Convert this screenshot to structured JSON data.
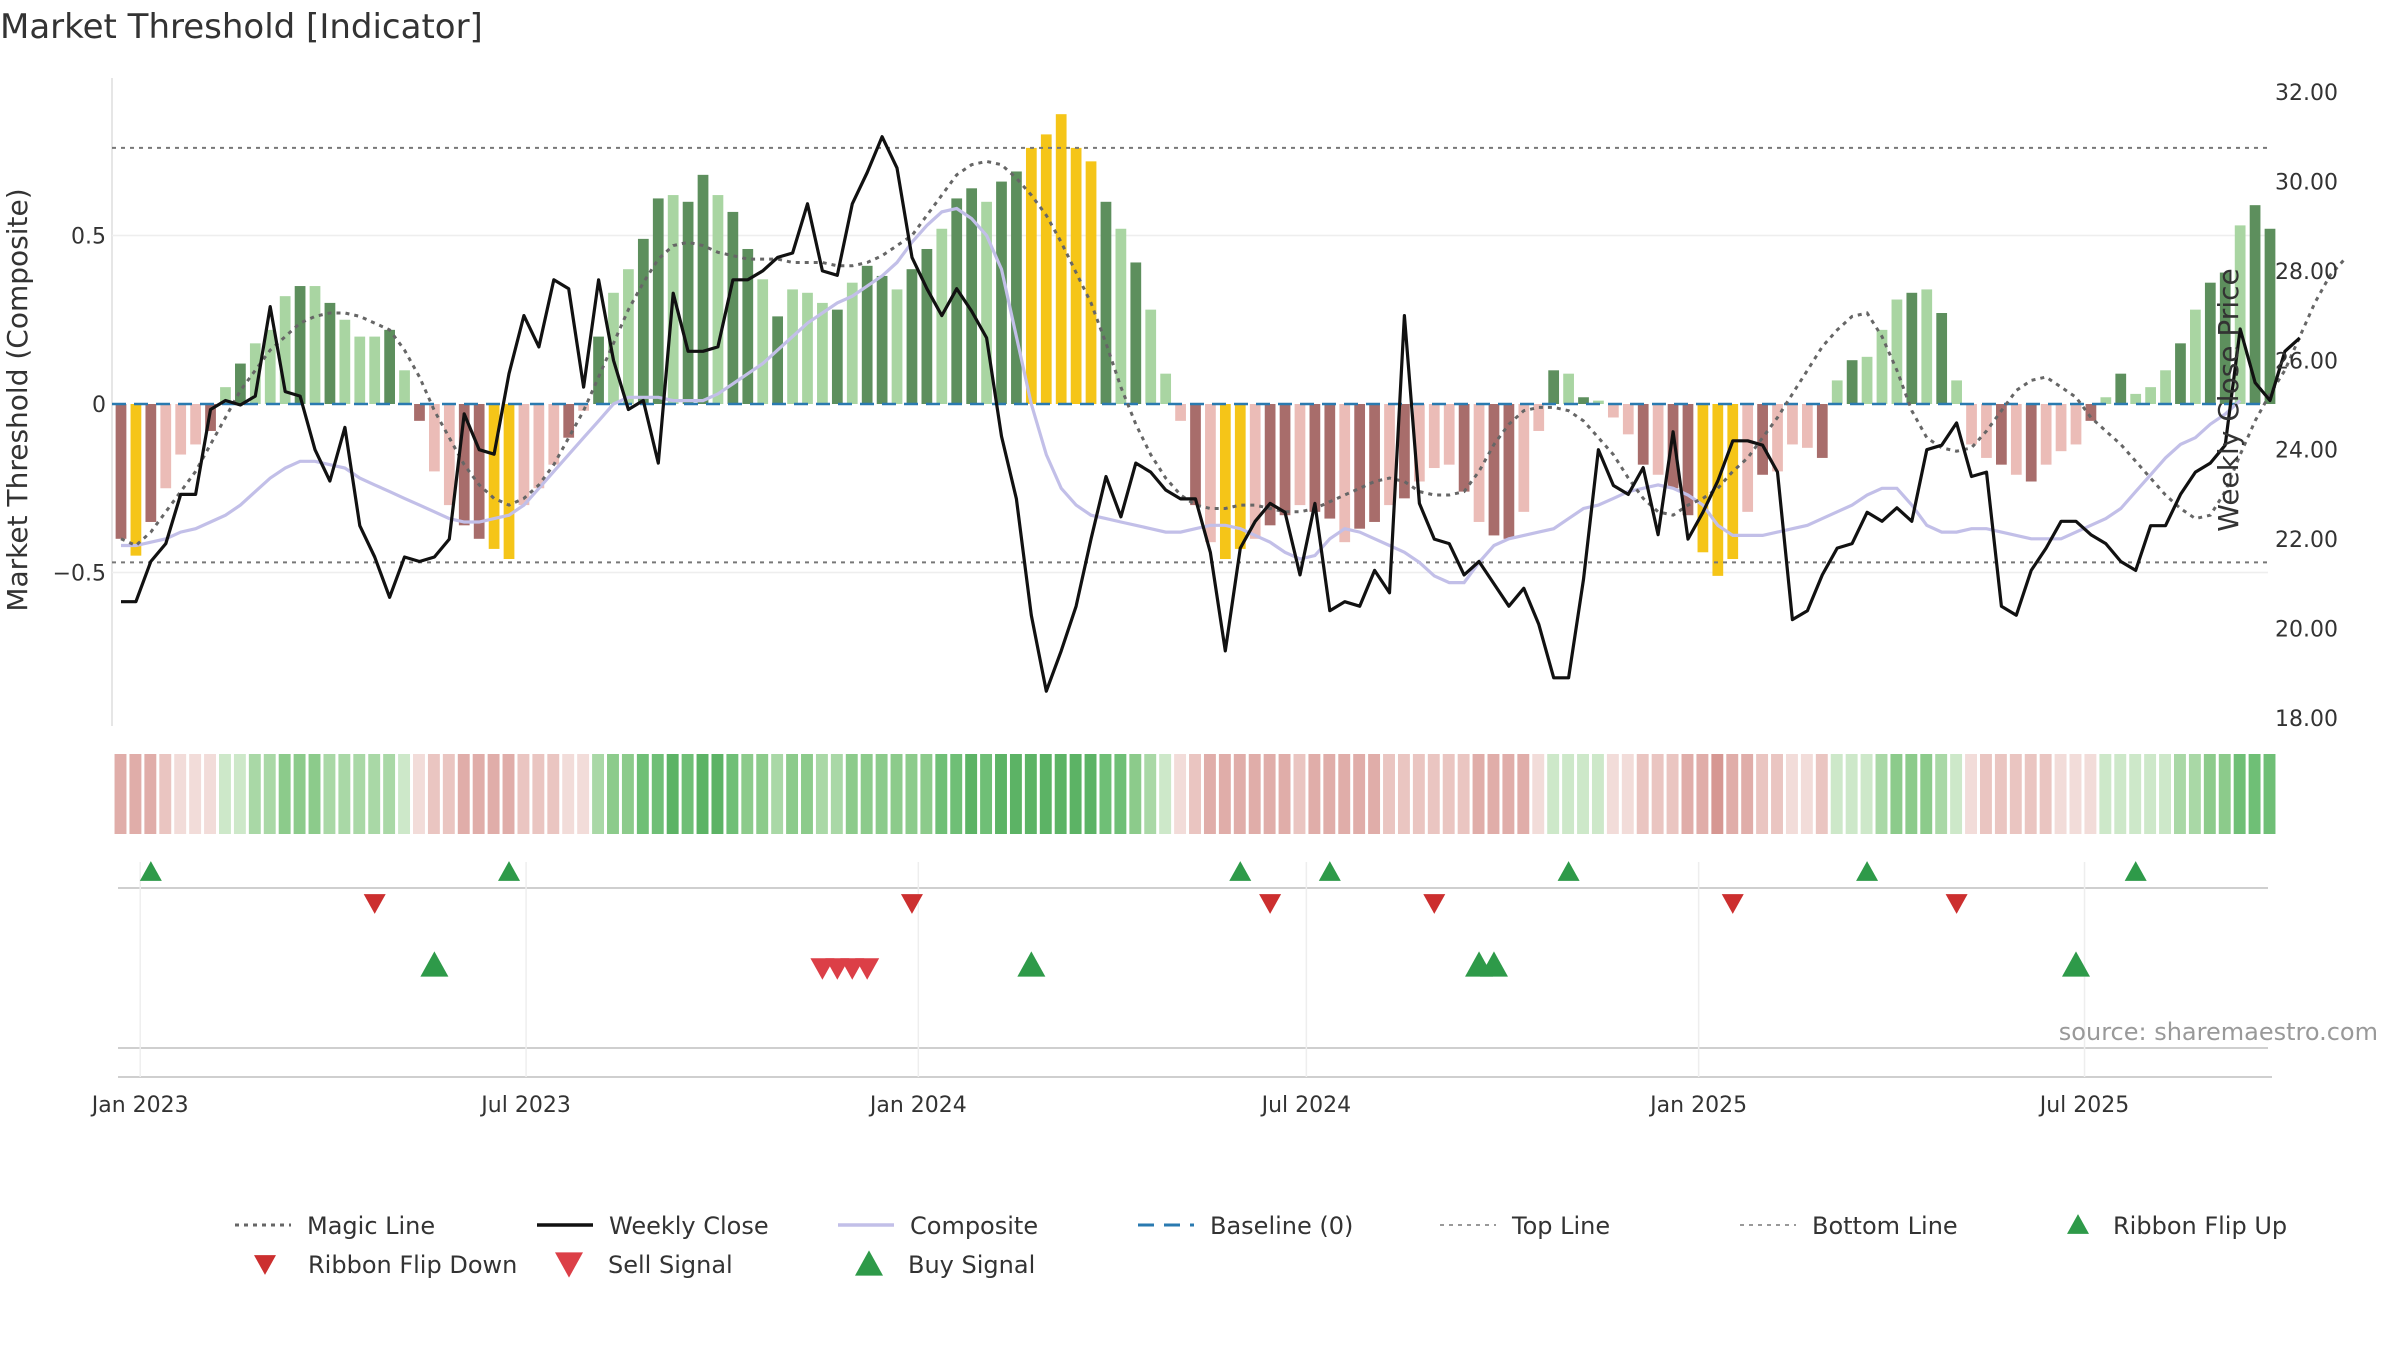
{
  "title": "Market Threshold [Indicator]",
  "source": "source: sharemaestro.com",
  "colors": {
    "bar_pos_strong": "#5d8f5d",
    "bar_pos_light": "#a9d5a2",
    "bar_neg_strong": "#a86d6b",
    "bar_neg_light": "#ebbcb7",
    "bar_extreme": "#f5c518",
    "weekly_close": "#111111",
    "composite": "#c2bfe8",
    "magic_line": "#666666",
    "baseline": "#2a7ab0",
    "ref_lines": "#777777",
    "ribbon_flip_up": "#2e9a49",
    "ribbon_flip_down": "#cc2f2f",
    "buy_signal": "#2e9a49",
    "sell_signal": "#dc3f47"
  },
  "chart_data": {
    "type": "bar",
    "title": "Market Threshold [Indicator]",
    "x_tick_labels": [
      "Jan 2023",
      "Jul 2023",
      "Jan 2024",
      "Jul 2024",
      "Jan 2025",
      "Jul 2025"
    ],
    "left_axis": {
      "label": "Market Threshold (Composite)",
      "ticks": [
        "0.5",
        "0",
        "−0.5"
      ],
      "tick_values": [
        0.5,
        0,
        -0.5
      ],
      "ylim": [
        -0.95,
        0.95
      ]
    },
    "right_axis": {
      "label": "Weekly Close Price",
      "ticks": [
        "32.00",
        "30.00",
        "28.00",
        "26.00",
        "24.00",
        "22.00",
        "20.00",
        "18.00"
      ],
      "tick_values": [
        32,
        30,
        28,
        26,
        24,
        22,
        20,
        18
      ],
      "ylim": [
        18,
        32
      ]
    },
    "top_line": 0.76,
    "bottom_line": -0.47,
    "baseline": 0,
    "weeks": 145,
    "start_date": "2022-12-23",
    "composite_histogram": [
      -0.4,
      -0.45,
      -0.35,
      -0.25,
      -0.15,
      -0.12,
      -0.08,
      0.05,
      0.12,
      0.18,
      0.22,
      0.32,
      0.35,
      0.35,
      0.3,
      0.25,
      0.2,
      0.2,
      0.22,
      0.1,
      -0.05,
      -0.2,
      -0.3,
      -0.36,
      -0.4,
      -0.43,
      -0.46,
      -0.3,
      -0.25,
      -0.18,
      -0.1,
      -0.02,
      0.2,
      0.33,
      0.4,
      0.49,
      0.61,
      0.62,
      0.6,
      0.68,
      0.62,
      0.57,
      0.46,
      0.37,
      0.26,
      0.34,
      0.33,
      0.3,
      0.28,
      0.36,
      0.41,
      0.38,
      0.34,
      0.4,
      0.46,
      0.52,
      0.61,
      0.64,
      0.6,
      0.66,
      0.69,
      0.76,
      0.8,
      0.86,
      0.76,
      0.72,
      0.6,
      0.52,
      0.42,
      0.28,
      0.09,
      -0.05,
      -0.3,
      -0.41,
      -0.46,
      -0.43,
      -0.4,
      -0.36,
      -0.33,
      -0.3,
      -0.32,
      -0.34,
      -0.41,
      -0.37,
      -0.35,
      -0.3,
      -0.28,
      -0.23,
      -0.19,
      -0.18,
      -0.26,
      -0.35,
      -0.39,
      -0.4,
      -0.32,
      -0.08,
      0.1,
      0.09,
      0.02,
      0.01,
      -0.04,
      -0.09,
      -0.18,
      -0.21,
      -0.25,
      -0.33,
      -0.44,
      -0.51,
      -0.46,
      -0.32,
      -0.21,
      -0.2,
      -0.12,
      -0.13,
      -0.16,
      0.07,
      0.13,
      0.14,
      0.22,
      0.31,
      0.33,
      0.34,
      0.27,
      0.07,
      -0.12,
      -0.16,
      -0.18,
      -0.21,
      -0.23,
      -0.18,
      -0.14,
      -0.12,
      -0.05,
      0.02,
      0.09,
      0.03,
      0.05,
      0.1,
      0.18,
      0.28,
      0.36,
      0.39,
      0.53,
      0.59,
      0.52
    ],
    "weekly_close": [
      20.6,
      20.6,
      21.5,
      21.9,
      23.0,
      23.0,
      24.9,
      25.1,
      25.0,
      25.2,
      27.2,
      25.3,
      25.2,
      24.0,
      23.3,
      24.5,
      22.3,
      21.6,
      20.7,
      21.6,
      21.5,
      21.6,
      22.0,
      24.8,
      24.0,
      23.9,
      25.7,
      27.0,
      26.3,
      27.8,
      27.6,
      25.4,
      27.8,
      26.0,
      24.9,
      25.1,
      23.7,
      27.5,
      26.2,
      26.2,
      26.3,
      27.8,
      27.8,
      28.0,
      28.3,
      28.4,
      29.5,
      28.0,
      27.9,
      29.5,
      30.2,
      31.0,
      30.3,
      28.3,
      27.6,
      27.0,
      27.6,
      27.1,
      26.5,
      24.3,
      22.9,
      20.3,
      18.6,
      19.5,
      20.5,
      22.0,
      23.4,
      22.5,
      23.7,
      23.5,
      23.1,
      22.9,
      22.9,
      21.7,
      19.5,
      21.8,
      22.4,
      22.8,
      22.6,
      21.2,
      22.8,
      20.4,
      20.6,
      20.5,
      21.3,
      20.8,
      27.0,
      22.8,
      22.0,
      21.9,
      21.2,
      21.5,
      21.0,
      20.5,
      20.9,
      20.1,
      18.9,
      18.9,
      21.1,
      24.0,
      23.2,
      23.0,
      23.6,
      22.1,
      24.4,
      22.0,
      22.6,
      23.3,
      24.2,
      24.2,
      24.1,
      23.5,
      20.2,
      20.4,
      21.2,
      21.8,
      21.9,
      22.6,
      22.4,
      22.7,
      22.4,
      24.0,
      24.1,
      24.6,
      23.4,
      23.5,
      20.5,
      20.3,
      21.3,
      21.8,
      22.4,
      22.4,
      22.1,
      21.9,
      21.5,
      21.3,
      22.3,
      22.3,
      23.0,
      23.5,
      23.7,
      24.1,
      26.7,
      25.5,
      25.1,
      26.2,
      26.5
    ],
    "composite_line": [
      -0.42,
      -0.42,
      -0.41,
      -0.4,
      -0.38,
      -0.37,
      -0.35,
      -0.33,
      -0.3,
      -0.26,
      -0.22,
      -0.19,
      -0.17,
      -0.17,
      -0.18,
      -0.19,
      -0.22,
      -0.24,
      -0.26,
      -0.28,
      -0.3,
      -0.32,
      -0.34,
      -0.35,
      -0.35,
      -0.34,
      -0.33,
      -0.3,
      -0.25,
      -0.2,
      -0.15,
      -0.1,
      -0.05,
      0.0,
      0.02,
      0.02,
      0.02,
      0.01,
      0.01,
      0.01,
      0.03,
      0.06,
      0.09,
      0.12,
      0.16,
      0.2,
      0.24,
      0.27,
      0.3,
      0.32,
      0.35,
      0.38,
      0.42,
      0.48,
      0.53,
      0.57,
      0.58,
      0.55,
      0.5,
      0.4,
      0.2,
      0.0,
      -0.15,
      -0.25,
      -0.3,
      -0.33,
      -0.34,
      -0.35,
      -0.36,
      -0.37,
      -0.38,
      -0.38,
      -0.37,
      -0.36,
      -0.36,
      -0.37,
      -0.39,
      -0.41,
      -0.44,
      -0.46,
      -0.45,
      -0.4,
      -0.37,
      -0.38,
      -0.4,
      -0.42,
      -0.44,
      -0.47,
      -0.51,
      -0.53,
      -0.53,
      -0.47,
      -0.42,
      -0.4,
      -0.39,
      -0.38,
      -0.37,
      -0.34,
      -0.31,
      -0.3,
      -0.28,
      -0.26,
      -0.25,
      -0.24,
      -0.25,
      -0.27,
      -0.3,
      -0.36,
      -0.39,
      -0.39,
      -0.39,
      -0.38,
      -0.37,
      -0.36,
      -0.34,
      -0.32,
      -0.3,
      -0.27,
      -0.25,
      -0.25,
      -0.3,
      -0.36,
      -0.38,
      -0.38,
      -0.37,
      -0.37,
      -0.38,
      -0.39,
      -0.4,
      -0.4,
      -0.4,
      -0.38,
      -0.36,
      -0.34,
      -0.31,
      -0.26,
      -0.21,
      -0.16,
      -0.12,
      -0.1,
      -0.06,
      -0.03,
      0.01
    ],
    "magic_line": [
      -0.4,
      -0.42,
      -0.38,
      -0.32,
      -0.26,
      -0.2,
      -0.12,
      -0.04,
      0.04,
      0.1,
      0.16,
      0.2,
      0.24,
      0.26,
      0.27,
      0.27,
      0.26,
      0.24,
      0.22,
      0.16,
      0.08,
      -0.02,
      -0.1,
      -0.18,
      -0.24,
      -0.28,
      -0.3,
      -0.28,
      -0.24,
      -0.18,
      -0.1,
      -0.02,
      0.08,
      0.18,
      0.28,
      0.36,
      0.43,
      0.47,
      0.48,
      0.47,
      0.45,
      0.44,
      0.43,
      0.43,
      0.43,
      0.42,
      0.42,
      0.42,
      0.41,
      0.41,
      0.42,
      0.44,
      0.47,
      0.5,
      0.56,
      0.62,
      0.68,
      0.71,
      0.72,
      0.71,
      0.67,
      0.62,
      0.56,
      0.48,
      0.39,
      0.3,
      0.18,
      0.05,
      -0.06,
      -0.15,
      -0.22,
      -0.27,
      -0.3,
      -0.31,
      -0.31,
      -0.3,
      -0.3,
      -0.31,
      -0.32,
      -0.32,
      -0.31,
      -0.29,
      -0.27,
      -0.25,
      -0.23,
      -0.22,
      -0.23,
      -0.26,
      -0.27,
      -0.27,
      -0.26,
      -0.2,
      -0.12,
      -0.06,
      -0.02,
      -0.01,
      -0.01,
      -0.02,
      -0.05,
      -0.1,
      -0.15,
      -0.22,
      -0.28,
      -0.32,
      -0.33,
      -0.3,
      -0.28,
      -0.25,
      -0.2,
      -0.16,
      -0.1,
      -0.04,
      0.03,
      0.1,
      0.17,
      0.22,
      0.26,
      0.27,
      0.2,
      0.1,
      -0.02,
      -0.1,
      -0.13,
      -0.14,
      -0.13,
      -0.08,
      -0.02,
      0.04,
      0.07,
      0.08,
      0.05,
      0.02,
      -0.04,
      -0.08,
      -0.12,
      -0.17,
      -0.22,
      -0.27,
      -0.31,
      -0.34,
      -0.33,
      -0.26,
      -0.15,
      -0.05,
      0.03,
      0.1,
      0.2,
      0.3,
      0.38,
      0.43
    ],
    "ribbon_flip_up_weeks": [
      2,
      26,
      75,
      81,
      97,
      117,
      135
    ],
    "ribbon_flip_down_weeks": [
      17,
      53,
      77,
      88,
      108,
      123
    ],
    "buy_signal_weeks": [
      21,
      61,
      91,
      92,
      131
    ],
    "sell_signal_weeks": [
      47,
      48,
      49,
      50
    ]
  },
  "legend": {
    "items": [
      {
        "label": "Magic Line",
        "type": "dotted",
        "color": "#666666"
      },
      {
        "label": "Weekly Close",
        "type": "solid",
        "color": "#111111"
      },
      {
        "label": "Composite",
        "type": "solid",
        "color": "#c2bfe8"
      },
      {
        "label": "Baseline (0)",
        "type": "dashed",
        "color": "#2a7ab0"
      },
      {
        "label": "Top Line",
        "type": "dotted-light",
        "color": "#999999"
      },
      {
        "label": "Bottom Line",
        "type": "dotted-light",
        "color": "#999999"
      },
      {
        "label": "Ribbon Flip Up",
        "type": "tri-up",
        "color": "#2e9a49"
      },
      {
        "label": "Ribbon Flip Down",
        "type": "tri-down",
        "color": "#cc2f2f"
      },
      {
        "label": "Sell Signal",
        "type": "tri-down-big",
        "color": "#dc3f47"
      },
      {
        "label": "Buy Signal",
        "type": "tri-up-big",
        "color": "#2e9a49"
      }
    ]
  }
}
